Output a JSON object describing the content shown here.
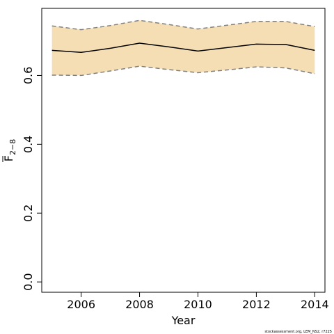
{
  "chart_data": {
    "type": "line",
    "xlabel": "Year",
    "ylabel": "F",
    "ylabel_subscript": "2−8",
    "xlim": [
      2004.65,
      2014.35
    ],
    "ylim": [
      -0.03,
      0.795
    ],
    "x_ticks": [
      2006,
      2008,
      2010,
      2012,
      2014
    ],
    "x_tick_labels": [
      "2006",
      "2008",
      "2010",
      "2012",
      "2014"
    ],
    "y_ticks": [
      0.0,
      0.2,
      0.4,
      0.6
    ],
    "y_tick_labels": [
      "0.0",
      "0.2",
      "0.4",
      "0.6"
    ],
    "grid": false,
    "legend": "none",
    "series": [
      {
        "role": "estimate",
        "x": [
          2005,
          2006,
          2007,
          2008,
          2009,
          2010,
          2011,
          2012,
          2013,
          2014
        ],
        "values": [
          0.673,
          0.667,
          0.679,
          0.694,
          0.683,
          0.671,
          0.681,
          0.691,
          0.69,
          0.673
        ]
      },
      {
        "role": "upper",
        "x": [
          2005,
          2006,
          2007,
          2008,
          2009,
          2010,
          2011,
          2012,
          2013,
          2014
        ],
        "values": [
          0.744,
          0.733,
          0.745,
          0.76,
          0.748,
          0.735,
          0.746,
          0.757,
          0.757,
          0.742
        ]
      },
      {
        "role": "lower",
        "x": [
          2005,
          2006,
          2007,
          2008,
          2009,
          2010,
          2011,
          2012,
          2013,
          2014
        ],
        "values": [
          0.601,
          0.6,
          0.613,
          0.627,
          0.617,
          0.608,
          0.616,
          0.625,
          0.622,
          0.605
        ]
      }
    ],
    "colors": {
      "band_fill": "#f5deb3",
      "estimate_line": "#000000",
      "bound_line": "#808080"
    },
    "footnote": "stockassessment.org, LEM_NS2, r7225"
  }
}
